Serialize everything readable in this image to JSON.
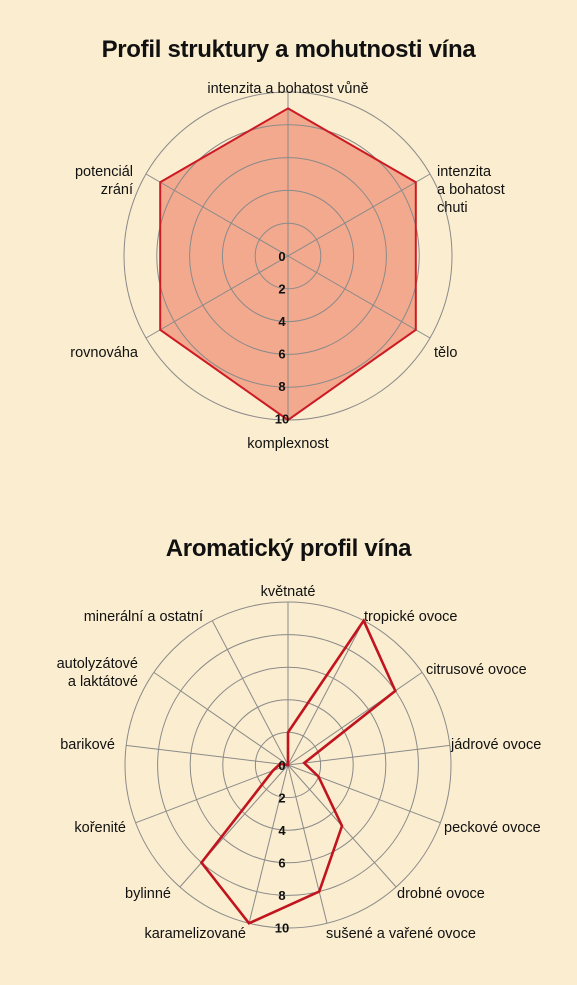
{
  "chart_data": [
    {
      "type": "radar",
      "title": "Profil struktury a mohutnosti vína",
      "categories": [
        "intenzita a bohatost vůně",
        "intenzita\na bohatost\nchuti",
        "tělo",
        "komplexnost",
        "rovnováha",
        "potenciál\nzrání"
      ],
      "values": [
        9,
        9,
        9,
        10,
        9,
        9
      ],
      "rlim": [
        0,
        10
      ],
      "ticks": [
        "0",
        "2",
        "4",
        "6",
        "8",
        "10"
      ],
      "grid": true,
      "colors": {
        "line": "#cc1b24",
        "fill": "#f2a98e",
        "grid": "#8a8a8a"
      }
    },
    {
      "type": "radar",
      "title": "Aromatický profil vína",
      "categories": [
        "květnaté",
        "tropické ovoce",
        "citrusové ovoce",
        "jádrové ovoce",
        "peckové ovoce",
        "drobné ovoce",
        "sušené a vařené ovoce",
        "karamelizované",
        "bylinné",
        "kořenité",
        "barikové",
        "autolyzátové\na laktátové",
        "minerální a ostatní"
      ],
      "values": [
        2,
        10,
        8,
        1,
        2,
        5,
        8,
        10,
        8,
        1,
        0.5,
        0,
        0
      ],
      "rlim": [
        0,
        10
      ],
      "ticks": [
        "0",
        "2",
        "4",
        "6",
        "8",
        "10"
      ],
      "grid": true,
      "colors": {
        "line": "#c0141e",
        "fill": "none",
        "grid": "#8a8a8a"
      }
    }
  ]
}
